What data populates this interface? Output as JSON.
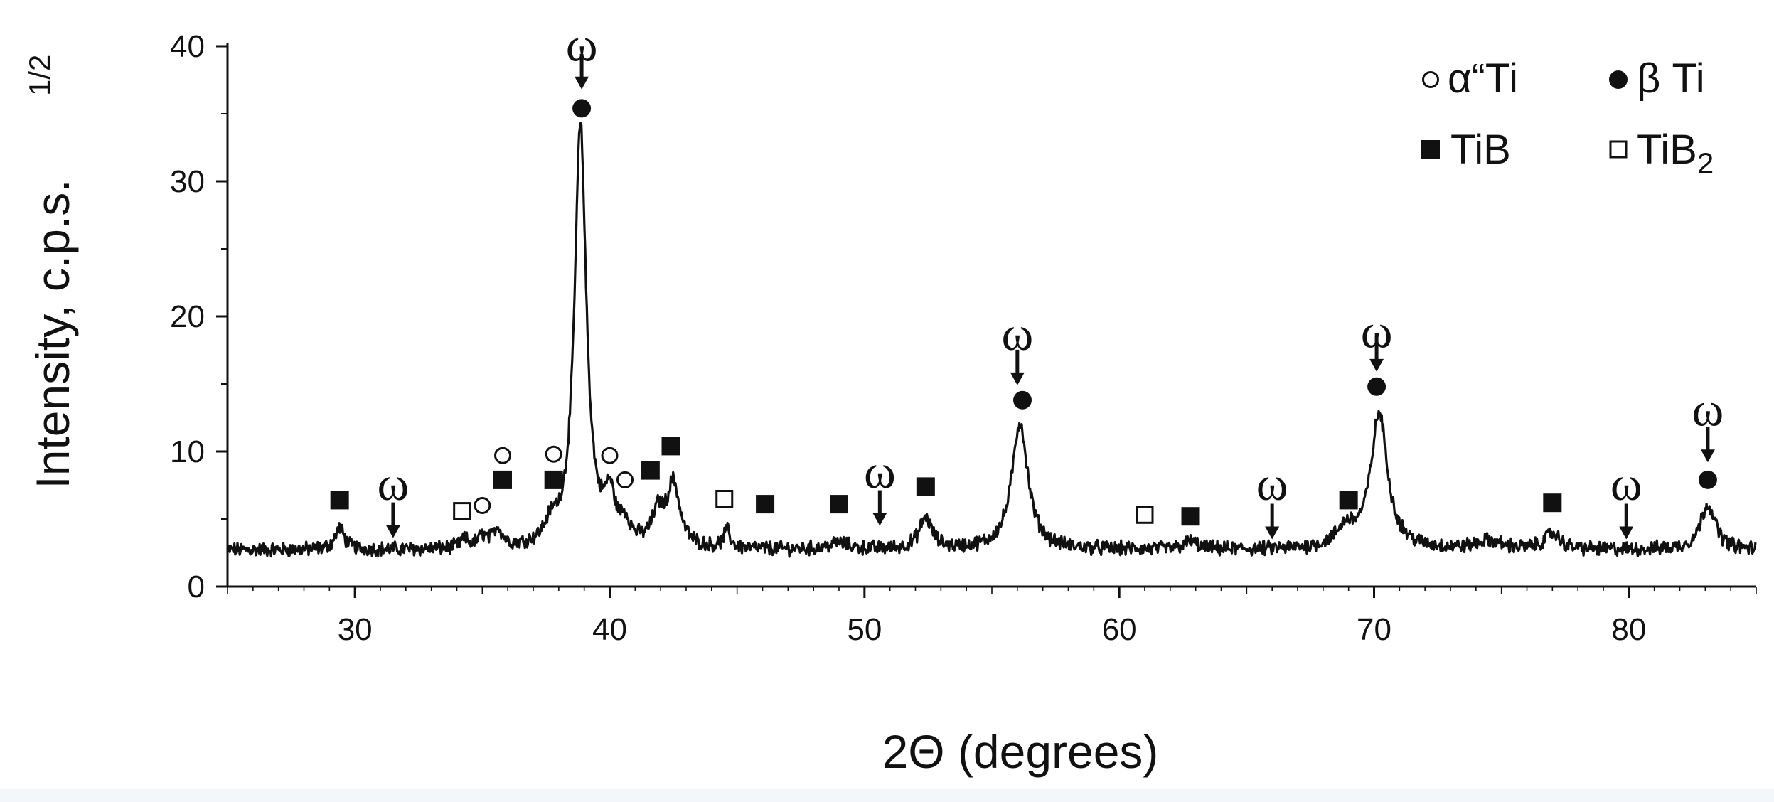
{
  "chart_data": {
    "type": "line",
    "xlabel": "2Θ (degrees)",
    "ylabel": "Intensity, c.p.s.",
    "ylabel_superscript": "1/2",
    "xlim": [
      25,
      85
    ],
    "ylim": [
      0,
      40
    ],
    "x_ticks": [
      30,
      40,
      50,
      60,
      70,
      80
    ],
    "y_ticks": [
      0,
      10,
      20,
      30,
      40
    ],
    "grid": false,
    "legend_position": "top-right",
    "legend": [
      {
        "key": "alpha2",
        "marker": "open-circle",
        "text": "α“Ti",
        "sub": ""
      },
      {
        "key": "beta",
        "marker": "filled-circle",
        "text": "β Ti",
        "sub": ""
      },
      {
        "key": "tib",
        "marker": "filled-square",
        "text": "TiB",
        "sub": ""
      },
      {
        "key": "tib2",
        "marker": "open-square",
        "text": "TiB",
        "sub": "2"
      }
    ],
    "baseline": 2.7,
    "peaks": [
      {
        "x": 29.4,
        "h": 1.6,
        "w": 0.22
      },
      {
        "x": 34.3,
        "h": 0.6,
        "w": 0.2
      },
      {
        "x": 35.0,
        "h": 0.8,
        "w": 0.2
      },
      {
        "x": 35.6,
        "h": 1.4,
        "w": 0.22
      },
      {
        "x": 37.7,
        "h": 1.3,
        "w": 0.3
      },
      {
        "x": 38.85,
        "h": 31.2,
        "w": 0.28
      },
      {
        "x": 40.0,
        "h": 3.3,
        "w": 0.25
      },
      {
        "x": 40.6,
        "h": 1.4,
        "w": 0.25
      },
      {
        "x": 41.9,
        "h": 2.3,
        "w": 0.28
      },
      {
        "x": 42.5,
        "h": 4.6,
        "w": 0.3
      },
      {
        "x": 44.6,
        "h": 1.3,
        "w": 0.15
      },
      {
        "x": 49.0,
        "h": 0.5,
        "w": 0.4
      },
      {
        "x": 52.4,
        "h": 2.3,
        "w": 0.3
      },
      {
        "x": 56.1,
        "h": 9.4,
        "w": 0.38
      },
      {
        "x": 62.8,
        "h": 0.6,
        "w": 0.3
      },
      {
        "x": 68.9,
        "h": 1.4,
        "w": 0.45
      },
      {
        "x": 70.2,
        "h": 10.0,
        "w": 0.4
      },
      {
        "x": 74.5,
        "h": 0.6,
        "w": 0.6
      },
      {
        "x": 77.0,
        "h": 1.2,
        "w": 0.35
      },
      {
        "x": 83.1,
        "h": 3.4,
        "w": 0.35
      }
    ],
    "markers": [
      {
        "x": 29.4,
        "y": 6.4,
        "type": "filled-square"
      },
      {
        "x": 34.2,
        "y": 5.6,
        "type": "open-square"
      },
      {
        "x": 35.0,
        "y": 6.0,
        "type": "open-circle"
      },
      {
        "x": 35.8,
        "y": 7.9,
        "type": "filled-square"
      },
      {
        "x": 35.8,
        "y": 9.7,
        "type": "open-circle"
      },
      {
        "x": 37.8,
        "y": 7.9,
        "type": "filled-square"
      },
      {
        "x": 37.8,
        "y": 9.8,
        "type": "open-circle"
      },
      {
        "x": 38.9,
        "y": 35.4,
        "type": "filled-circle"
      },
      {
        "x": 40.0,
        "y": 9.7,
        "type": "open-circle"
      },
      {
        "x": 40.6,
        "y": 7.9,
        "type": "open-circle"
      },
      {
        "x": 41.6,
        "y": 8.6,
        "type": "filled-square"
      },
      {
        "x": 42.4,
        "y": 10.4,
        "type": "filled-square"
      },
      {
        "x": 44.5,
        "y": 6.5,
        "type": "open-square"
      },
      {
        "x": 46.1,
        "y": 6.1,
        "type": "filled-square"
      },
      {
        "x": 49.0,
        "y": 6.1,
        "type": "filled-square"
      },
      {
        "x": 52.4,
        "y": 7.4,
        "type": "filled-square"
      },
      {
        "x": 56.2,
        "y": 13.8,
        "type": "filled-circle"
      },
      {
        "x": 61.0,
        "y": 5.3,
        "type": "open-square"
      },
      {
        "x": 62.8,
        "y": 5.2,
        "type": "filled-square"
      },
      {
        "x": 69.0,
        "y": 6.4,
        "type": "filled-square"
      },
      {
        "x": 70.1,
        "y": 14.8,
        "type": "filled-circle"
      },
      {
        "x": 77.0,
        "y": 6.2,
        "type": "filled-square"
      },
      {
        "x": 83.1,
        "y": 7.9,
        "type": "filled-circle"
      }
    ],
    "omega_label": "ω",
    "omega_arrows": [
      {
        "x": 31.5,
        "y": 3.6,
        "label_y": 8.0
      },
      {
        "x": 38.9,
        "y": 36.8,
        "label_y": 40.5
      },
      {
        "x": 50.6,
        "y": 4.5,
        "label_y": 8.9
      },
      {
        "x": 56.0,
        "y": 14.9,
        "label_y": 19.1
      },
      {
        "x": 66.0,
        "y": 3.5,
        "label_y": 8.0
      },
      {
        "x": 70.1,
        "y": 15.9,
        "label_y": 19.3
      },
      {
        "x": 79.9,
        "y": 3.5,
        "label_y": 8.0
      },
      {
        "x": 83.1,
        "y": 9.2,
        "label_y": 13.5
      }
    ]
  }
}
